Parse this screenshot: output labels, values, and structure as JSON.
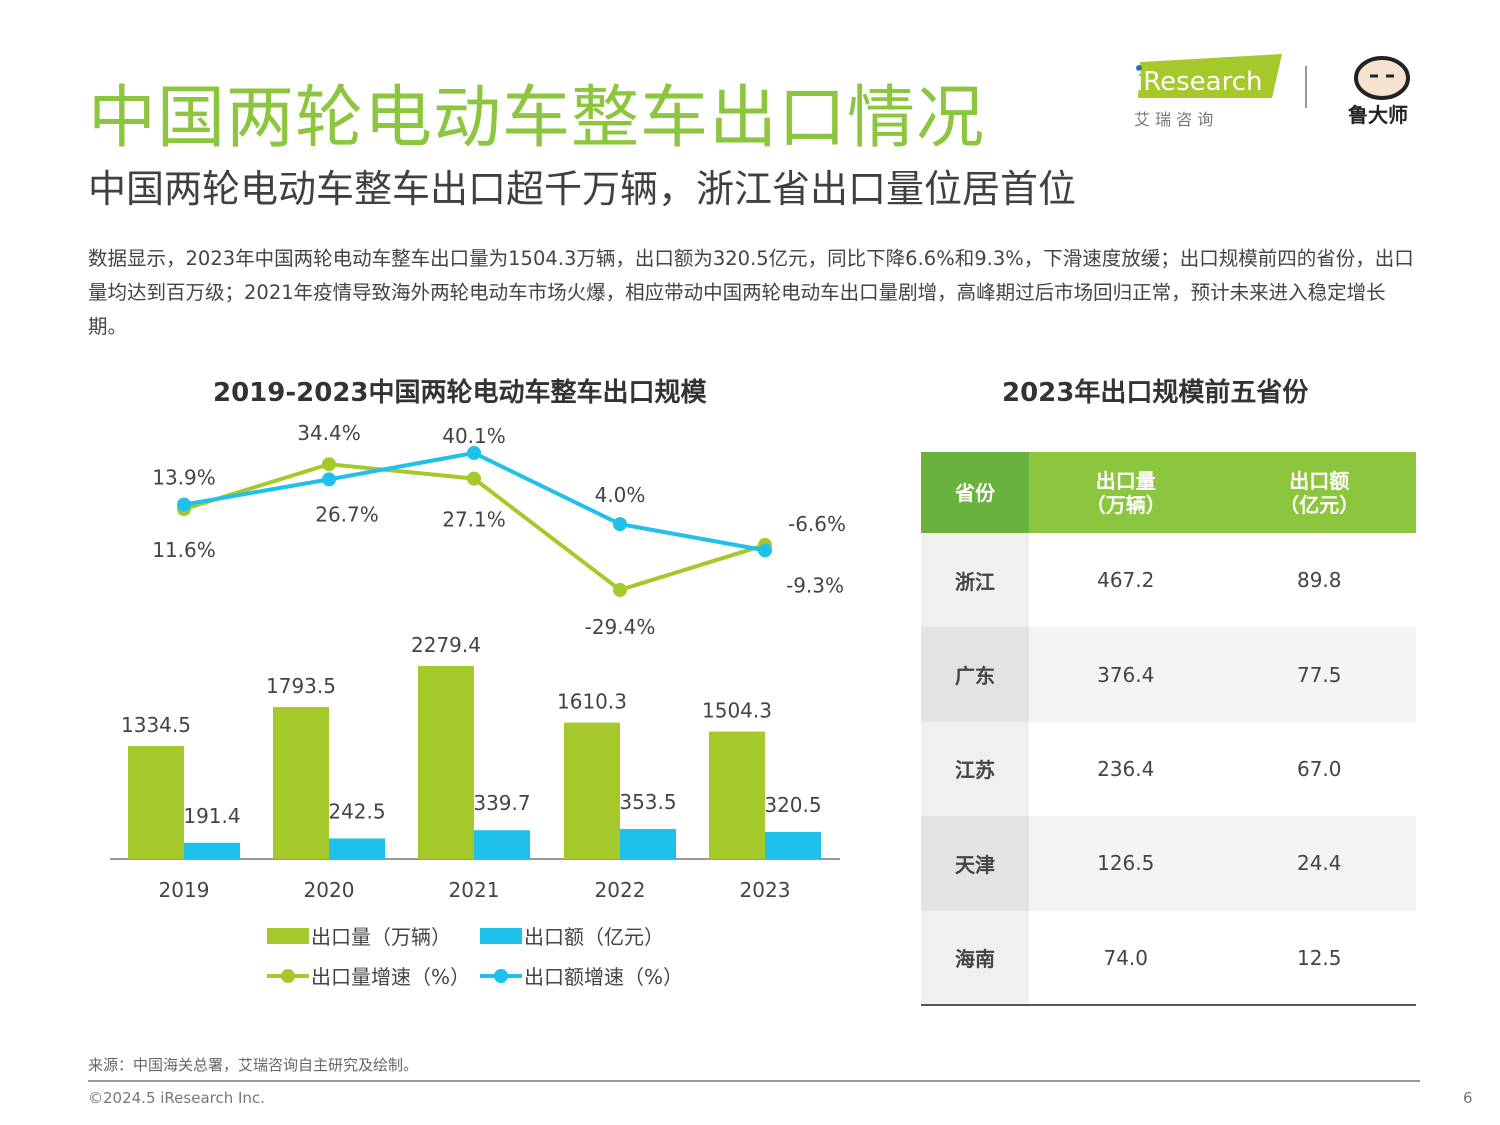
{
  "header": {
    "title": "中国两轮电动车整车出口情况",
    "subtitle": "中国两轮电动车整车出口超千万辆，浙江省出口量位居首位",
    "logo_iresearch": "iResearch",
    "logo_iresearch_cn": "艾 瑞 咨 询",
    "logo_partner": "鲁大师"
  },
  "description": "数据显示，2023年中国两轮电动车整车出口量为1504.3万辆，出口额为320.5亿元，同比下降6.6%和9.3%，下滑速度放缓；出口规模前四的省份，出口量均达到百万级；2021年疫情导致海外两轮电动车市场火爆，相应带动中国两轮电动车出口量剧增，高峰期过后市场回归正常，预计未来进入稳定增长期。",
  "colors": {
    "green": "#a5c92a",
    "blue": "#1fc0ea",
    "title_green": "#8cc63f",
    "table_header": "#8cc63f",
    "table_header_first": "#6ab23e"
  },
  "chart_data": [
    {
      "type": "bar+line",
      "title": "2019-2023中国两轮电动车整车出口规模",
      "categories": [
        "2019",
        "2020",
        "2021",
        "2022",
        "2023"
      ],
      "series": [
        {
          "name": "出口量（万辆）",
          "type": "bar",
          "color": "#a5c92a",
          "values": [
            1334.5,
            1793.5,
            2279.4,
            1610.3,
            1504.3
          ],
          "labels": [
            "1334.5",
            "1793.5",
            "2279.4",
            "1610.3",
            "1504.3"
          ]
        },
        {
          "name": "出口额（亿元）",
          "type": "bar",
          "color": "#1fc0ea",
          "values": [
            191.4,
            242.5,
            339.7,
            353.5,
            320.5
          ],
          "labels": [
            "191.4",
            "242.5",
            "339.7",
            "353.5",
            "320.5"
          ]
        },
        {
          "name": "出口量增速（%）",
          "type": "line",
          "color": "#a5c92a",
          "values": [
            11.6,
            34.4,
            27.1,
            -29.4,
            -6.6
          ],
          "labels": [
            "11.6%",
            "34.4%",
            "27.1%",
            "-29.4%",
            "-6.6%"
          ]
        },
        {
          "name": "出口额增速（%）",
          "type": "line",
          "color": "#1fc0ea",
          "values": [
            13.9,
            26.7,
            40.1,
            4.0,
            -9.3
          ],
          "labels": [
            "13.9%",
            "26.7%",
            "40.1%",
            "4.0%",
            "-9.3%"
          ]
        }
      ],
      "legend": "bottom"
    },
    {
      "type": "table",
      "title": "2023年出口规模前五省份",
      "columns": [
        "省份",
        "出口量\n（万辆）",
        "出口额\n（亿元）"
      ],
      "rows": [
        [
          "浙江",
          "467.2",
          "89.8"
        ],
        [
          "广东",
          "376.4",
          "77.5"
        ],
        [
          "江苏",
          "236.4",
          "67.0"
        ],
        [
          "天津",
          "126.5",
          "24.4"
        ],
        [
          "海南",
          "74.0",
          "12.5"
        ]
      ]
    }
  ],
  "footer": {
    "source": "来源：中国海关总署，艾瑞咨询自主研究及绘制。",
    "copyright": "©2024.5 iResearch Inc.",
    "page": "6"
  }
}
